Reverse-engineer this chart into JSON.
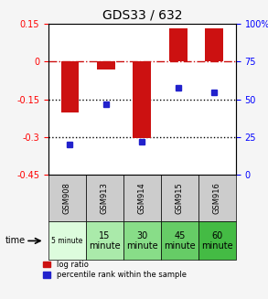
{
  "title": "GDS33 / 632",
  "categories": [
    "GSM908",
    "GSM913",
    "GSM914",
    "GSM915",
    "GSM916"
  ],
  "log_ratios": [
    -0.2,
    -0.03,
    -0.305,
    0.132,
    0.132
  ],
  "percentile_ranks": [
    20,
    47,
    22,
    58,
    55
  ],
  "time_labels": [
    "5 minute",
    "15\nminute",
    "30\nminute",
    "45\nminute",
    "60\nminute"
  ],
  "time_colors": [
    "#ccffcc",
    "#99ee99",
    "#66dd66",
    "#44cc44",
    "#22bb22"
  ],
  "bar_color": "#cc1111",
  "dot_color": "#2222cc",
  "ylim_left": [
    -0.45,
    0.15
  ],
  "ylim_right": [
    0,
    100
  ],
  "yticks_left": [
    0.15,
    0,
    -0.15,
    -0.3,
    -0.45
  ],
  "yticks_right": [
    100,
    75,
    50,
    25,
    0
  ],
  "hline_zero_color": "#cc1111",
  "hline_dotted_color": "#000000",
  "hline_dotted_vals": [
    -0.15,
    -0.3
  ],
  "background_color": "#f5f5f5",
  "plot_bg": "#ffffff",
  "time_row_colors": [
    "#ddffdd",
    "#bbffbb",
    "#99ff99",
    "#77ee77",
    "#55dd55"
  ],
  "gsm_row_color": "#cccccc"
}
